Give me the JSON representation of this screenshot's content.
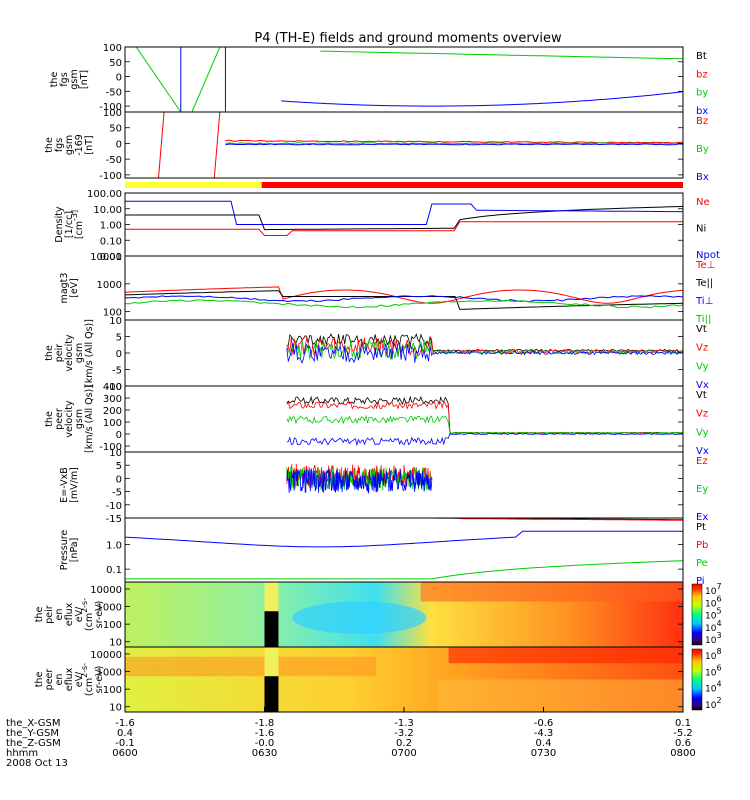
{
  "title": "P4 (TH-E) fields and ground moments overview",
  "colors": {
    "black": "#000000",
    "red": "#ff0000",
    "green": "#00cc00",
    "blue": "#0000ff",
    "yellow": "#ffff33"
  },
  "x_axis": {
    "tick_labels": [
      "0600",
      "0630",
      "0700",
      "0730",
      "0800"
    ],
    "rows": [
      {
        "label": "the_X-GSM",
        "values": [
          "-1.6",
          "-1.8",
          "-1.3",
          "-0.6",
          "0.1"
        ]
      },
      {
        "label": "the_Y-GSM",
        "values": [
          "0.4",
          "-1.6",
          "-3.2",
          "-4.3",
          "-5.2"
        ]
      },
      {
        "label": "the_Z-GSM",
        "values": [
          "-0.1",
          "-0.0",
          "0.2",
          "0.4",
          "0.6"
        ]
      },
      {
        "label": "hhmm",
        "values": [
          "0600",
          "0630",
          "0700",
          "0730",
          "0800"
        ]
      }
    ],
    "date": "2008 Oct 13"
  },
  "chart_data": [
    {
      "type": "line",
      "ylabel": [
        "the",
        "fgs",
        "gsm",
        "[nT]"
      ],
      "ylim": [
        -120,
        100
      ],
      "yticks": [
        "100",
        "50",
        "0",
        "-50",
        "-100"
      ],
      "yticks_values": [
        100,
        50,
        0,
        -50,
        -100
      ],
      "legend": [
        {
          "name": "Bt",
          "color": "black"
        },
        {
          "name": "bz",
          "color": "red"
        },
        {
          "name": "by",
          "color": "green"
        },
        {
          "name": "bx",
          "color": "blue"
        }
      ]
    },
    {
      "type": "line",
      "ylabel": [
        "the",
        "fgs",
        "gsm",
        "-169",
        "[nT]"
      ],
      "ylim": [
        -110,
        100
      ],
      "yticks": [
        "100",
        "50",
        "0",
        "-50",
        "-100"
      ],
      "yticks_values": [
        100,
        50,
        0,
        -50,
        -100
      ],
      "legend": [
        {
          "name": "Bz",
          "color": "red"
        },
        {
          "name": "By",
          "color": "green"
        },
        {
          "name": "Bx",
          "color": "blue"
        }
      ]
    },
    {
      "type": "line",
      "scale": "log",
      "ylabel": [
        "Density",
        "[1/cc]",
        "[cm^-3]"
      ],
      "ylim": [
        0.01,
        100
      ],
      "yticks": [
        "100.00",
        "10.00",
        "1.00",
        "0.10",
        "0.01"
      ],
      "yticks_values": [
        100,
        10,
        1,
        0.1,
        0.01
      ],
      "legend": [
        {
          "name": "Ne",
          "color": "red"
        },
        {
          "name": "Ni",
          "color": "black"
        },
        {
          "name": "Npot",
          "color": "blue"
        }
      ]
    },
    {
      "type": "line",
      "scale": "log",
      "ylabel": [
        "magt3",
        "[eV]"
      ],
      "ylim": [
        50,
        10000
      ],
      "yticks": [
        "10000",
        "1000",
        "100"
      ],
      "yticks_values": [
        10000,
        1000,
        100
      ],
      "legend": [
        {
          "name": "Te⊥",
          "color": "red"
        },
        {
          "name": "Te||",
          "color": "black"
        },
        {
          "name": "Ti⊥",
          "color": "blue"
        },
        {
          "name": "Ti||",
          "color": "green"
        }
      ]
    },
    {
      "type": "line",
      "ylabel": [
        "the",
        "peir",
        "velocity",
        "gsm",
        "[km/s (All Qs)]"
      ],
      "ylim": [
        -10,
        10
      ],
      "yticks": [
        "10",
        "5",
        "0",
        "-5",
        "-10"
      ],
      "yticks_values": [
        10,
        5,
        0,
        -5,
        -10
      ],
      "legend": [
        {
          "name": "Vt",
          "color": "black"
        },
        {
          "name": "Vz",
          "color": "red"
        },
        {
          "name": "Vy",
          "color": "green"
        },
        {
          "name": "Vx",
          "color": "blue"
        }
      ]
    },
    {
      "type": "line",
      "ylabel": [
        "the",
        "peer",
        "velocity",
        "gsm",
        "[km/s (All Qs)]"
      ],
      "ylim": [
        -150,
        400
      ],
      "yticks": [
        "400",
        "300",
        "200",
        "100",
        "0",
        "-100"
      ],
      "yticks_values": [
        400,
        300,
        200,
        100,
        0,
        -100
      ],
      "legend": [
        {
          "name": "Vt",
          "color": "black"
        },
        {
          "name": "Vz",
          "color": "red"
        },
        {
          "name": "Vy",
          "color": "green"
        },
        {
          "name": "Vx",
          "color": "blue"
        }
      ]
    },
    {
      "type": "line",
      "ylabel": [
        "E=-VxB",
        "[mV/m]"
      ],
      "ylim": [
        -15,
        10
      ],
      "yticks": [
        "10",
        "5",
        "0",
        "-5",
        "-10",
        "-15"
      ],
      "yticks_values": [
        10,
        5,
        0,
        -5,
        -10,
        -15
      ],
      "legend": [
        {
          "name": "Ez",
          "color": "red"
        },
        {
          "name": "Ey",
          "color": "green"
        },
        {
          "name": "Ex",
          "color": "blue"
        }
      ]
    },
    {
      "type": "line",
      "scale": "log",
      "ylabel": [
        "Pressure",
        "[nPa]"
      ],
      "ylim": [
        0.03,
        12
      ],
      "yticks": [
        "1.0",
        "0.1"
      ],
      "yticks_values": [
        1,
        0.1
      ],
      "legend": [
        {
          "name": "Pt",
          "color": "black"
        },
        {
          "name": "Pb",
          "color": "red"
        },
        {
          "name": "Pe",
          "color": "green"
        },
        {
          "name": "Pi",
          "color": "blue"
        }
      ]
    },
    {
      "type": "heatmap",
      "scale": "log",
      "ylabel": [
        "the",
        "peir",
        "en",
        "eflux",
        "eV/",
        "(cm^2-s-",
        "sr-eV)"
      ],
      "ylim": [
        5,
        25000
      ],
      "yticks": [
        "10000",
        "1000",
        "100",
        "10"
      ],
      "yticks_values": [
        10000,
        1000,
        100,
        10
      ],
      "colorbar": {
        "ticks": [
          "10^7",
          "10^6",
          "10^5",
          "10^4",
          "10^3"
        ]
      }
    },
    {
      "type": "heatmap",
      "scale": "log",
      "ylabel": [
        "the",
        "peer",
        "en",
        "eflux",
        "eV/",
        "(cm^2-s-",
        "sr-eV)"
      ],
      "ylim": [
        5,
        25000
      ],
      "yticks": [
        "10000",
        "1000",
        "100",
        "10"
      ],
      "yticks_values": [
        10000,
        1000,
        100,
        10
      ],
      "colorbar": {
        "ticks": [
          "10^8",
          "10^6",
          "10^4",
          "10^2"
        ]
      }
    }
  ]
}
